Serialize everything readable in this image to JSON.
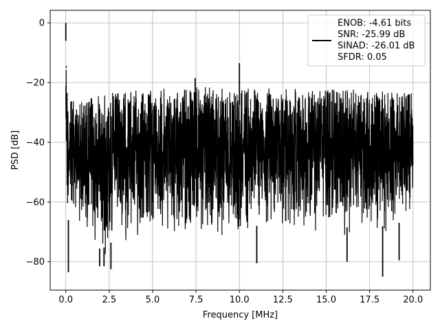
{
  "chart_data": {
    "type": "line",
    "title": "",
    "xlabel": "Frequency [MHz]",
    "ylabel": "PSD [dB]",
    "xlim": [
      -0.9,
      21.0
    ],
    "ylim": [
      -89.5,
      4.2
    ],
    "xticks": [
      0.0,
      2.5,
      5.0,
      7.5,
      10.0,
      12.5,
      15.0,
      17.5,
      20.0
    ],
    "xtick_labels": [
      "0.0",
      "2.5",
      "5.0",
      "7.5",
      "10.0",
      "12.5",
      "15.0",
      "17.5",
      "20.0"
    ],
    "yticks": [
      0,
      -20,
      -40,
      -60,
      -80
    ],
    "ytick_labels": [
      "0",
      "−20",
      "−40",
      "−60",
      "−80"
    ],
    "grid": true,
    "legend_position": "top-right",
    "series": [
      {
        "name": "ENOB: -4.61 bits\nSNR: -25.99 dB\nSINAD: -26.01 dB\nSFDR: 0.05",
        "color": "#000000",
        "description_points": {
          "x": [
            0.0,
            0.05,
            0.1,
            0.15,
            0.2,
            0.5,
            1.0,
            2.0,
            3.0,
            5.0,
            7.5,
            10.0,
            12.5,
            15.0,
            17.5,
            20.0
          ],
          "upper_envelope": [
            0.0,
            -15,
            -22,
            -26,
            -25,
            -26,
            -25,
            -24,
            -23,
            -22,
            -21.5,
            -21.5,
            -22,
            -22,
            -22.5,
            -23
          ],
          "lower_envelope": [
            -45,
            -60,
            -66,
            -70,
            -72,
            -68,
            -72,
            -80,
            -76,
            -72,
            -74,
            -72,
            -72,
            -72,
            -73,
            -70
          ]
        },
        "spikes": [
          {
            "x": 0.0,
            "y": 0.0
          },
          {
            "x": 0.03,
            "y": -14.5
          },
          {
            "x": 7.45,
            "y": -18.5
          },
          {
            "x": 10.0,
            "y": -13.5
          }
        ],
        "dips": [
          {
            "x": 0.15,
            "y": -83.5
          },
          {
            "x": 1.95,
            "y": -81.5
          },
          {
            "x": 2.2,
            "y": -81.5
          },
          {
            "x": 2.6,
            "y": -82.5
          },
          {
            "x": 11.0,
            "y": -80.5
          },
          {
            "x": 16.2,
            "y": -80.0
          },
          {
            "x": 18.25,
            "y": -85.0
          },
          {
            "x": 19.2,
            "y": -79.5
          }
        ]
      }
    ],
    "legend_text": [
      "ENOB: -4.61 bits",
      "SNR: -25.99 dB",
      "SINAD: -26.01 dB",
      "SFDR: 0.05"
    ]
  }
}
